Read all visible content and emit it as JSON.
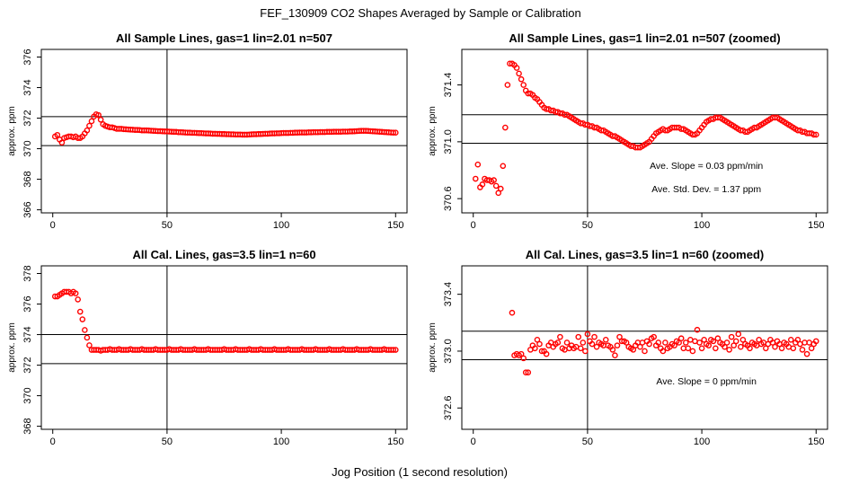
{
  "figure": {
    "title": "FEF_130909  CO2 Shapes Averaged by Sample or Calibration",
    "xlabel": "Jog Position (1 second resolution)"
  },
  "colors": {
    "points": "#ff0000",
    "axes": "#000000",
    "background": "#ffffff"
  },
  "chart_data": [
    {
      "type": "scatter",
      "title": "All Sample Lines, gas=1 lin=2.01 n=507",
      "ylabel": "approx. ppm",
      "xlim": [
        -5,
        155
      ],
      "ylim": [
        365.8,
        376.5
      ],
      "xticks": [
        0,
        50,
        100,
        150
      ],
      "yticks": [
        366,
        368,
        370,
        372,
        374,
        376
      ],
      "vlines": [
        50
      ],
      "hlines": [
        372.1,
        370.2
      ],
      "annotations": [],
      "x": [
        1,
        2,
        3,
        4,
        5,
        6,
        7,
        8,
        9,
        10,
        11,
        12,
        13,
        14,
        15,
        16,
        17,
        18,
        19,
        20,
        21,
        22,
        23,
        24,
        25,
        26,
        27,
        28,
        29,
        30,
        31,
        32,
        33,
        34,
        35,
        36,
        37,
        38,
        39,
        40,
        41,
        42,
        43,
        44,
        45,
        46,
        47,
        48,
        49,
        50,
        51,
        52,
        53,
        54,
        55,
        56,
        57,
        58,
        59,
        60,
        61,
        62,
        63,
        64,
        65,
        66,
        67,
        68,
        69,
        70,
        71,
        72,
        73,
        74,
        75,
        76,
        77,
        78,
        79,
        80,
        81,
        82,
        83,
        84,
        85,
        86,
        87,
        88,
        89,
        90,
        91,
        92,
        93,
        94,
        95,
        96,
        97,
        98,
        99,
        100,
        101,
        102,
        103,
        104,
        105,
        106,
        107,
        108,
        109,
        110,
        111,
        112,
        113,
        114,
        115,
        116,
        117,
        118,
        119,
        120,
        121,
        122,
        123,
        124,
        125,
        126,
        127,
        128,
        129,
        130,
        131,
        132,
        133,
        134,
        135,
        136,
        137,
        138,
        139,
        140,
        141,
        142,
        143,
        144,
        145,
        146,
        147,
        148,
        149,
        150
      ],
      "y": [
        370.8,
        370.9,
        370.6,
        370.4,
        370.7,
        370.75,
        370.8,
        370.8,
        370.75,
        370.8,
        370.7,
        370.7,
        370.8,
        371.0,
        371.2,
        371.5,
        371.8,
        372.1,
        372.25,
        372.2,
        371.9,
        371.6,
        371.5,
        371.45,
        371.4,
        371.4,
        371.35,
        371.3,
        371.3,
        371.3,
        371.28,
        371.27,
        371.26,
        371.25,
        371.24,
        371.23,
        371.23,
        371.22,
        371.2,
        371.2,
        371.2,
        371.19,
        371.18,
        371.17,
        371.16,
        371.15,
        371.15,
        371.14,
        371.13,
        371.13,
        371.12,
        371.11,
        371.1,
        371.1,
        371.08,
        371.08,
        371.07,
        371.06,
        371.05,
        371.05,
        371.04,
        371.04,
        371.03,
        371.02,
        371.02,
        371.01,
        371.0,
        371.0,
        370.99,
        370.98,
        370.98,
        370.97,
        370.97,
        370.96,
        370.96,
        370.95,
        370.95,
        370.94,
        370.94,
        370.93,
        370.93,
        370.93,
        370.92,
        370.92,
        370.92,
        370.93,
        370.94,
        370.95,
        370.95,
        370.96,
        370.96,
        370.97,
        370.98,
        370.98,
        370.99,
        371.0,
        371.0,
        371.01,
        371.01,
        371.02,
        371.03,
        371.03,
        371.03,
        371.04,
        371.04,
        371.05,
        371.05,
        371.06,
        371.06,
        371.06,
        371.06,
        371.07,
        371.07,
        371.08,
        371.08,
        371.08,
        371.09,
        371.09,
        371.09,
        371.1,
        371.1,
        371.1,
        371.11,
        371.11,
        371.11,
        371.11,
        371.12,
        371.12,
        371.12,
        371.13,
        371.13,
        371.14,
        371.15,
        371.16,
        371.17,
        371.17,
        371.17,
        371.16,
        371.15,
        371.14,
        371.13,
        371.12,
        371.11,
        371.1,
        371.09,
        371.08,
        371.07,
        371.06,
        371.05,
        371.05
      ]
    },
    {
      "type": "scatter",
      "title": "All Sample Lines, gas=1 lin=2.01 n=507 (zoomed)",
      "ylabel": "approx. ppm",
      "xlim": [
        -5,
        155
      ],
      "ylim": [
        370.5,
        371.65
      ],
      "xticks": [
        0,
        50,
        100,
        150
      ],
      "yticks": [
        370.6,
        371.0,
        371.4
      ],
      "vlines": [
        50
      ],
      "hlines": [
        371.19,
        370.99
      ],
      "annotations": [
        "Ave. Slope =  0.03  ppm/min",
        "Ave. Std. Dev. =  1.37  ppm"
      ],
      "x": [
        1,
        2,
        3,
        4,
        5,
        6,
        7,
        8,
        9,
        10,
        11,
        12,
        13,
        14,
        15,
        16,
        17,
        18,
        19,
        20,
        21,
        22,
        23,
        24,
        25,
        26,
        27,
        28,
        29,
        30,
        31,
        32,
        33,
        34,
        35,
        36,
        37,
        38,
        39,
        40,
        41,
        42,
        43,
        44,
        45,
        46,
        47,
        48,
        49,
        50,
        51,
        52,
        53,
        54,
        55,
        56,
        57,
        58,
        59,
        60,
        61,
        62,
        63,
        64,
        65,
        66,
        67,
        68,
        69,
        70,
        71,
        72,
        73,
        74,
        75,
        76,
        77,
        78,
        79,
        80,
        81,
        82,
        83,
        84,
        85,
        86,
        87,
        88,
        89,
        90,
        91,
        92,
        93,
        94,
        95,
        96,
        97,
        98,
        99,
        100,
        101,
        102,
        103,
        104,
        105,
        106,
        107,
        108,
        109,
        110,
        111,
        112,
        113,
        114,
        115,
        116,
        117,
        118,
        119,
        120,
        121,
        122,
        123,
        124,
        125,
        126,
        127,
        128,
        129,
        130,
        131,
        132,
        133,
        134,
        135,
        136,
        137,
        138,
        139,
        140,
        141,
        142,
        143,
        144,
        145,
        146,
        147,
        148,
        149,
        150
      ],
      "y": [
        370.74,
        370.84,
        370.68,
        370.7,
        370.74,
        370.73,
        370.73,
        370.72,
        370.73,
        370.69,
        370.64,
        370.67,
        370.83,
        371.1,
        371.4,
        371.55,
        371.55,
        371.54,
        371.52,
        371.48,
        371.44,
        371.4,
        371.36,
        371.34,
        371.34,
        371.33,
        371.31,
        371.3,
        371.28,
        371.26,
        371.24,
        371.23,
        371.23,
        371.22,
        371.22,
        371.21,
        371.21,
        371.2,
        371.2,
        371.19,
        371.19,
        371.18,
        371.17,
        371.16,
        371.15,
        371.14,
        371.13,
        371.13,
        371.12,
        371.12,
        371.11,
        371.11,
        371.1,
        371.1,
        371.09,
        371.08,
        371.08,
        371.07,
        371.06,
        371.05,
        371.04,
        371.04,
        371.03,
        371.02,
        371.01,
        371.0,
        370.99,
        370.98,
        370.97,
        370.97,
        370.96,
        370.96,
        370.96,
        370.97,
        370.98,
        370.99,
        371.0,
        371.02,
        371.04,
        371.06,
        371.07,
        371.08,
        371.09,
        371.08,
        371.08,
        371.09,
        371.1,
        371.1,
        371.1,
        371.1,
        371.09,
        371.09,
        371.08,
        371.07,
        371.06,
        371.05,
        371.05,
        371.06,
        371.08,
        371.1,
        371.12,
        371.14,
        371.15,
        371.16,
        371.16,
        371.17,
        371.17,
        371.17,
        371.16,
        371.15,
        371.14,
        371.13,
        371.12,
        371.11,
        371.1,
        371.09,
        371.08,
        371.08,
        371.07,
        371.07,
        371.08,
        371.09,
        371.1,
        371.1,
        371.11,
        371.12,
        371.13,
        371.14,
        371.15,
        371.16,
        371.17,
        371.17,
        371.17,
        371.16,
        371.15,
        371.14,
        371.13,
        371.12,
        371.11,
        371.1,
        371.09,
        371.08,
        371.08,
        371.07,
        371.07,
        371.06,
        371.06,
        371.06,
        371.05,
        371.05
      ]
    },
    {
      "type": "scatter",
      "title": "All Cal. Lines, gas=3.5 lin=1 n=60",
      "ylabel": "approx. ppm",
      "xlim": [
        -5,
        155
      ],
      "ylim": [
        367.8,
        378.5
      ],
      "xticks": [
        0,
        50,
        100,
        150
      ],
      "yticks": [
        368,
        370,
        372,
        374,
        376,
        378
      ],
      "vlines": [
        50
      ],
      "hlines": [
        374.0,
        372.1
      ],
      "annotations": [],
      "x": [
        1,
        2,
        3,
        4,
        5,
        6,
        7,
        8,
        9,
        10,
        11,
        12,
        13,
        14,
        15,
        16,
        17,
        18,
        19,
        20,
        21,
        22,
        23,
        24,
        25,
        26,
        27,
        28,
        29,
        30,
        31,
        32,
        33,
        34,
        35,
        36,
        37,
        38,
        39,
        40,
        41,
        42,
        43,
        44,
        45,
        46,
        47,
        48,
        49,
        50,
        51,
        52,
        53,
        54,
        55,
        56,
        57,
        58,
        59,
        60,
        61,
        62,
        63,
        64,
        65,
        66,
        67,
        68,
        69,
        70,
        71,
        72,
        73,
        74,
        75,
        76,
        77,
        78,
        79,
        80,
        81,
        82,
        83,
        84,
        85,
        86,
        87,
        88,
        89,
        90,
        91,
        92,
        93,
        94,
        95,
        96,
        97,
        98,
        99,
        100,
        101,
        102,
        103,
        104,
        105,
        106,
        107,
        108,
        109,
        110,
        111,
        112,
        113,
        114,
        115,
        116,
        117,
        118,
        119,
        120,
        121,
        122,
        123,
        124,
        125,
        126,
        127,
        128,
        129,
        130,
        131,
        132,
        133,
        134,
        135,
        136,
        137,
        138,
        139,
        140,
        141,
        142,
        143,
        144,
        145,
        146,
        147,
        148,
        149,
        150
      ],
      "y": [
        376.5,
        376.5,
        376.6,
        376.7,
        376.8,
        376.8,
        376.8,
        376.7,
        376.8,
        376.7,
        376.3,
        375.5,
        375.0,
        374.3,
        373.8,
        373.3,
        373.0,
        373.0,
        373.0,
        373.0,
        372.95,
        373.0,
        373.0,
        373.0,
        373.05,
        373.0,
        373.0,
        373.0,
        373.05,
        373.0,
        373.0,
        373.0,
        373.0,
        373.05,
        373.0,
        373.0,
        373.0,
        373.0,
        373.05,
        373.0,
        373.0,
        373.0,
        373.0,
        373.0,
        373.05,
        373.0,
        373.0,
        373.0,
        373.0,
        373.0,
        373.05,
        373.0,
        373.0,
        373.0,
        373.0,
        373.05,
        373.0,
        373.0,
        373.0,
        373.0,
        373.0,
        373.05,
        373.0,
        373.0,
        373.0,
        373.0,
        373.0,
        373.05,
        373.0,
        373.0,
        373.0,
        373.0,
        373.0,
        373.0,
        373.05,
        373.0,
        373.0,
        373.0,
        373.0,
        373.05,
        373.0,
        373.0,
        373.0,
        373.0,
        373.0,
        373.05,
        373.0,
        373.0,
        373.0,
        373.0,
        373.05,
        373.0,
        373.0,
        373.0,
        373.0,
        373.0,
        373.05,
        373.0,
        373.0,
        373.0,
        373.0,
        373.0,
        373.05,
        373.0,
        373.0,
        373.0,
        373.0,
        373.0,
        373.05,
        373.0,
        373.0,
        373.0,
        373.0,
        373.0,
        373.05,
        373.0,
        373.0,
        373.0,
        373.0,
        373.0,
        373.05,
        373.0,
        373.0,
        373.0,
        373.0,
        373.0,
        373.05,
        373.0,
        373.0,
        373.0,
        373.0,
        373.0,
        373.05,
        373.0,
        373.0,
        373.0,
        373.0,
        373.0,
        373.05,
        373.0,
        373.0,
        373.0,
        373.0,
        373.0,
        373.05,
        373.0,
        373.0,
        373.0,
        373.0,
        373.0
      ]
    },
    {
      "type": "scatter",
      "title": "All Cal. Lines, gas=3.5 lin=1 n=60 (zoomed)",
      "ylabel": "approx. ppm",
      "xlim": [
        -5,
        155
      ],
      "ylim": [
        372.45,
        373.6
      ],
      "xticks": [
        0,
        50,
        100,
        150
      ],
      "yticks": [
        372.6,
        373.0,
        373.4
      ],
      "vlines": [
        50
      ],
      "hlines": [
        373.14,
        372.94
      ],
      "annotations": [
        "Ave. Slope =  0  ppm/min"
      ],
      "x": [
        17,
        18,
        19,
        20,
        21,
        22,
        23,
        24,
        25,
        26,
        27,
        28,
        29,
        30,
        31,
        32,
        33,
        34,
        35,
        36,
        37,
        38,
        39,
        40,
        41,
        42,
        43,
        44,
        45,
        46,
        47,
        48,
        49,
        50,
        51,
        52,
        53,
        54,
        55,
        56,
        57,
        58,
        59,
        60,
        61,
        62,
        63,
        64,
        65,
        66,
        67,
        68,
        69,
        70,
        71,
        72,
        73,
        74,
        75,
        76,
        77,
        78,
        79,
        80,
        81,
        82,
        83,
        84,
        85,
        86,
        87,
        88,
        89,
        90,
        91,
        92,
        93,
        94,
        95,
        96,
        97,
        98,
        99,
        100,
        101,
        102,
        103,
        104,
        105,
        106,
        107,
        108,
        109,
        110,
        111,
        112,
        113,
        114,
        115,
        116,
        117,
        118,
        119,
        120,
        121,
        122,
        123,
        124,
        125,
        126,
        127,
        128,
        129,
        130,
        131,
        132,
        133,
        134,
        135,
        136,
        137,
        138,
        139,
        140,
        141,
        142,
        143,
        144,
        145,
        146,
        147,
        148,
        149,
        150
      ],
      "y": [
        373.27,
        372.97,
        372.98,
        372.97,
        372.98,
        372.95,
        372.85,
        372.85,
        373.01,
        373.04,
        373.02,
        373.08,
        373.05,
        373.0,
        373.0,
        372.98,
        373.04,
        373.06,
        373.03,
        373.05,
        373.06,
        373.1,
        373.02,
        373.01,
        373.06,
        373.02,
        373.04,
        373.02,
        373.03,
        373.1,
        373.02,
        373.06,
        373.0,
        373.12,
        373.07,
        373.05,
        373.1,
        373.03,
        373.06,
        373.05,
        373.04,
        373.08,
        373.04,
        373.03,
        373.01,
        372.97,
        373.04,
        373.1,
        373.07,
        373.07,
        373.06,
        373.03,
        373.02,
        373.01,
        373.04,
        373.06,
        373.03,
        373.06,
        373.0,
        373.07,
        373.05,
        373.09,
        373.1,
        373.04,
        373.06,
        373.02,
        373.0,
        373.06,
        373.02,
        373.03,
        373.05,
        373.04,
        373.07,
        373.06,
        373.09,
        373.02,
        373.06,
        373.02,
        373.08,
        373.0,
        373.07,
        373.15,
        373.06,
        373.02,
        373.08,
        373.05,
        373.04,
        373.08,
        373.07,
        373.02,
        373.09,
        373.06,
        373.05,
        373.03,
        373.06,
        373.01,
        373.1,
        373.04,
        373.07,
        373.12,
        373.03,
        373.08,
        373.05,
        373.04,
        373.02,
        373.06,
        373.05,
        373.04,
        373.08,
        373.05,
        373.06,
        373.02,
        373.05,
        373.08,
        373.06,
        373.03,
        373.07,
        373.05,
        373.02,
        373.06,
        373.05,
        373.03,
        373.08,
        373.02,
        373.06,
        373.08,
        373.05,
        373.01,
        373.06,
        372.98,
        373.06,
        373.02,
        373.05,
        373.07
      ]
    }
  ]
}
